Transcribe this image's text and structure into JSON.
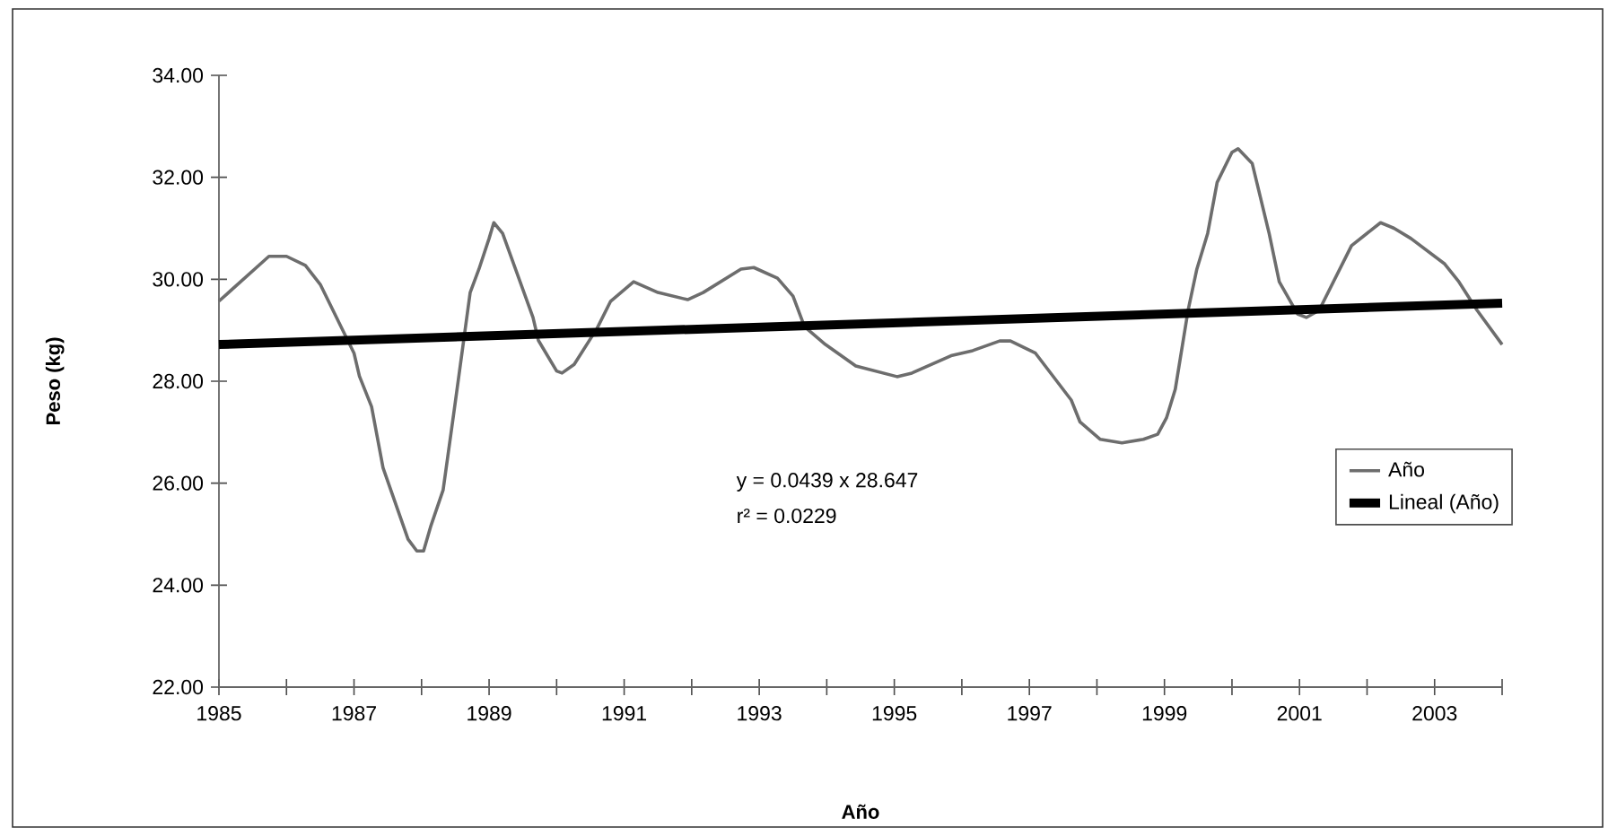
{
  "chart_data": {
    "type": "line",
    "xlabel": "Año",
    "ylabel": "Peso (kg)",
    "x": [
      1985.0,
      1985.74,
      1986.0,
      1986.28,
      1986.5,
      1987.0,
      1987.08,
      1987.26,
      1987.43,
      1987.8,
      1987.93,
      1988.03,
      1988.14,
      1988.32,
      1988.48,
      1988.72,
      1988.85,
      1989.0,
      1989.07,
      1989.2,
      1989.65,
      1989.73,
      1990.0,
      1990.08,
      1990.26,
      1990.6,
      1990.8,
      1991.14,
      1991.5,
      1991.94,
      1992.17,
      1992.73,
      1992.92,
      1993.27,
      1993.5,
      1993.67,
      1993.98,
      1994.43,
      1995.04,
      1995.26,
      1995.84,
      1996.16,
      1996.56,
      1996.72,
      1997.09,
      1997.62,
      1997.75,
      1998.05,
      1998.37,
      1998.69,
      1998.9,
      1999.03,
      1999.16,
      1999.35,
      1999.48,
      1999.64,
      1999.78,
      2000.0,
      2000.09,
      2000.3,
      2000.55,
      2000.7,
      2000.97,
      2001.1,
      2001.29,
      2001.77,
      2002.2,
      2002.4,
      2002.65,
      2003.15,
      2003.36,
      2003.63,
      2004.0
    ],
    "series": [
      {
        "name": "Año",
        "color": "#6d6d6d",
        "values": [
          29.57,
          30.45,
          30.45,
          30.27,
          29.9,
          28.55,
          28.1,
          27.5,
          26.3,
          24.9,
          24.67,
          24.67,
          25.17,
          25.87,
          27.4,
          29.74,
          30.2,
          30.8,
          31.11,
          30.9,
          29.25,
          28.8,
          28.2,
          28.16,
          28.33,
          29.04,
          29.57,
          29.95,
          29.74,
          29.6,
          29.74,
          30.2,
          30.23,
          30.02,
          29.67,
          29.07,
          28.72,
          28.3,
          28.09,
          28.16,
          28.5,
          28.6,
          28.79,
          28.79,
          28.55,
          27.63,
          27.2,
          26.86,
          26.79,
          26.86,
          26.96,
          27.28,
          27.84,
          29.39,
          30.2,
          30.9,
          31.9,
          32.49,
          32.56,
          32.27,
          30.9,
          29.95,
          29.32,
          29.25,
          29.39,
          30.66,
          31.11,
          31.0,
          30.8,
          30.3,
          29.95,
          29.39,
          28.72
        ]
      },
      {
        "name": "Lineal (Año)",
        "type": "line",
        "color": "#000000",
        "x": [
          1985,
          2004
        ],
        "values": [
          28.72,
          29.53
        ]
      }
    ],
    "xlim": [
      1985,
      2004
    ],
    "xticks": [
      1985,
      {
        "value": 1986,
        "label": null
      },
      1987,
      {
        "value": 1988,
        "label": null
      },
      1989,
      {
        "value": 1990,
        "label": null
      },
      1991,
      {
        "value": 1992,
        "label": null
      },
      1993,
      {
        "value": 1994,
        "label": null
      },
      1995,
      {
        "value": 1996,
        "label": null
      },
      1997,
      {
        "value": 1998,
        "label": null
      },
      1999,
      {
        "value": 2000,
        "label": null
      },
      2001,
      {
        "value": 2002,
        "label": null
      },
      2003,
      {
        "value": 2004,
        "label": null
      }
    ],
    "ylim": [
      22,
      34
    ],
    "yticks": [
      {
        "value": 22,
        "label": "22.00"
      },
      {
        "value": 24,
        "label": "24.00"
      },
      {
        "value": 26,
        "label": "26.00"
      },
      {
        "value": 28,
        "label": "28.00"
      },
      {
        "value": 30,
        "label": "30.00"
      },
      {
        "value": 32,
        "label": "32.00"
      },
      {
        "value": 34,
        "label": "34.00"
      }
    ],
    "legend": "right",
    "annotations": [
      "y = 0.0439 x 28.647",
      "r² = 0.0229"
    ]
  }
}
